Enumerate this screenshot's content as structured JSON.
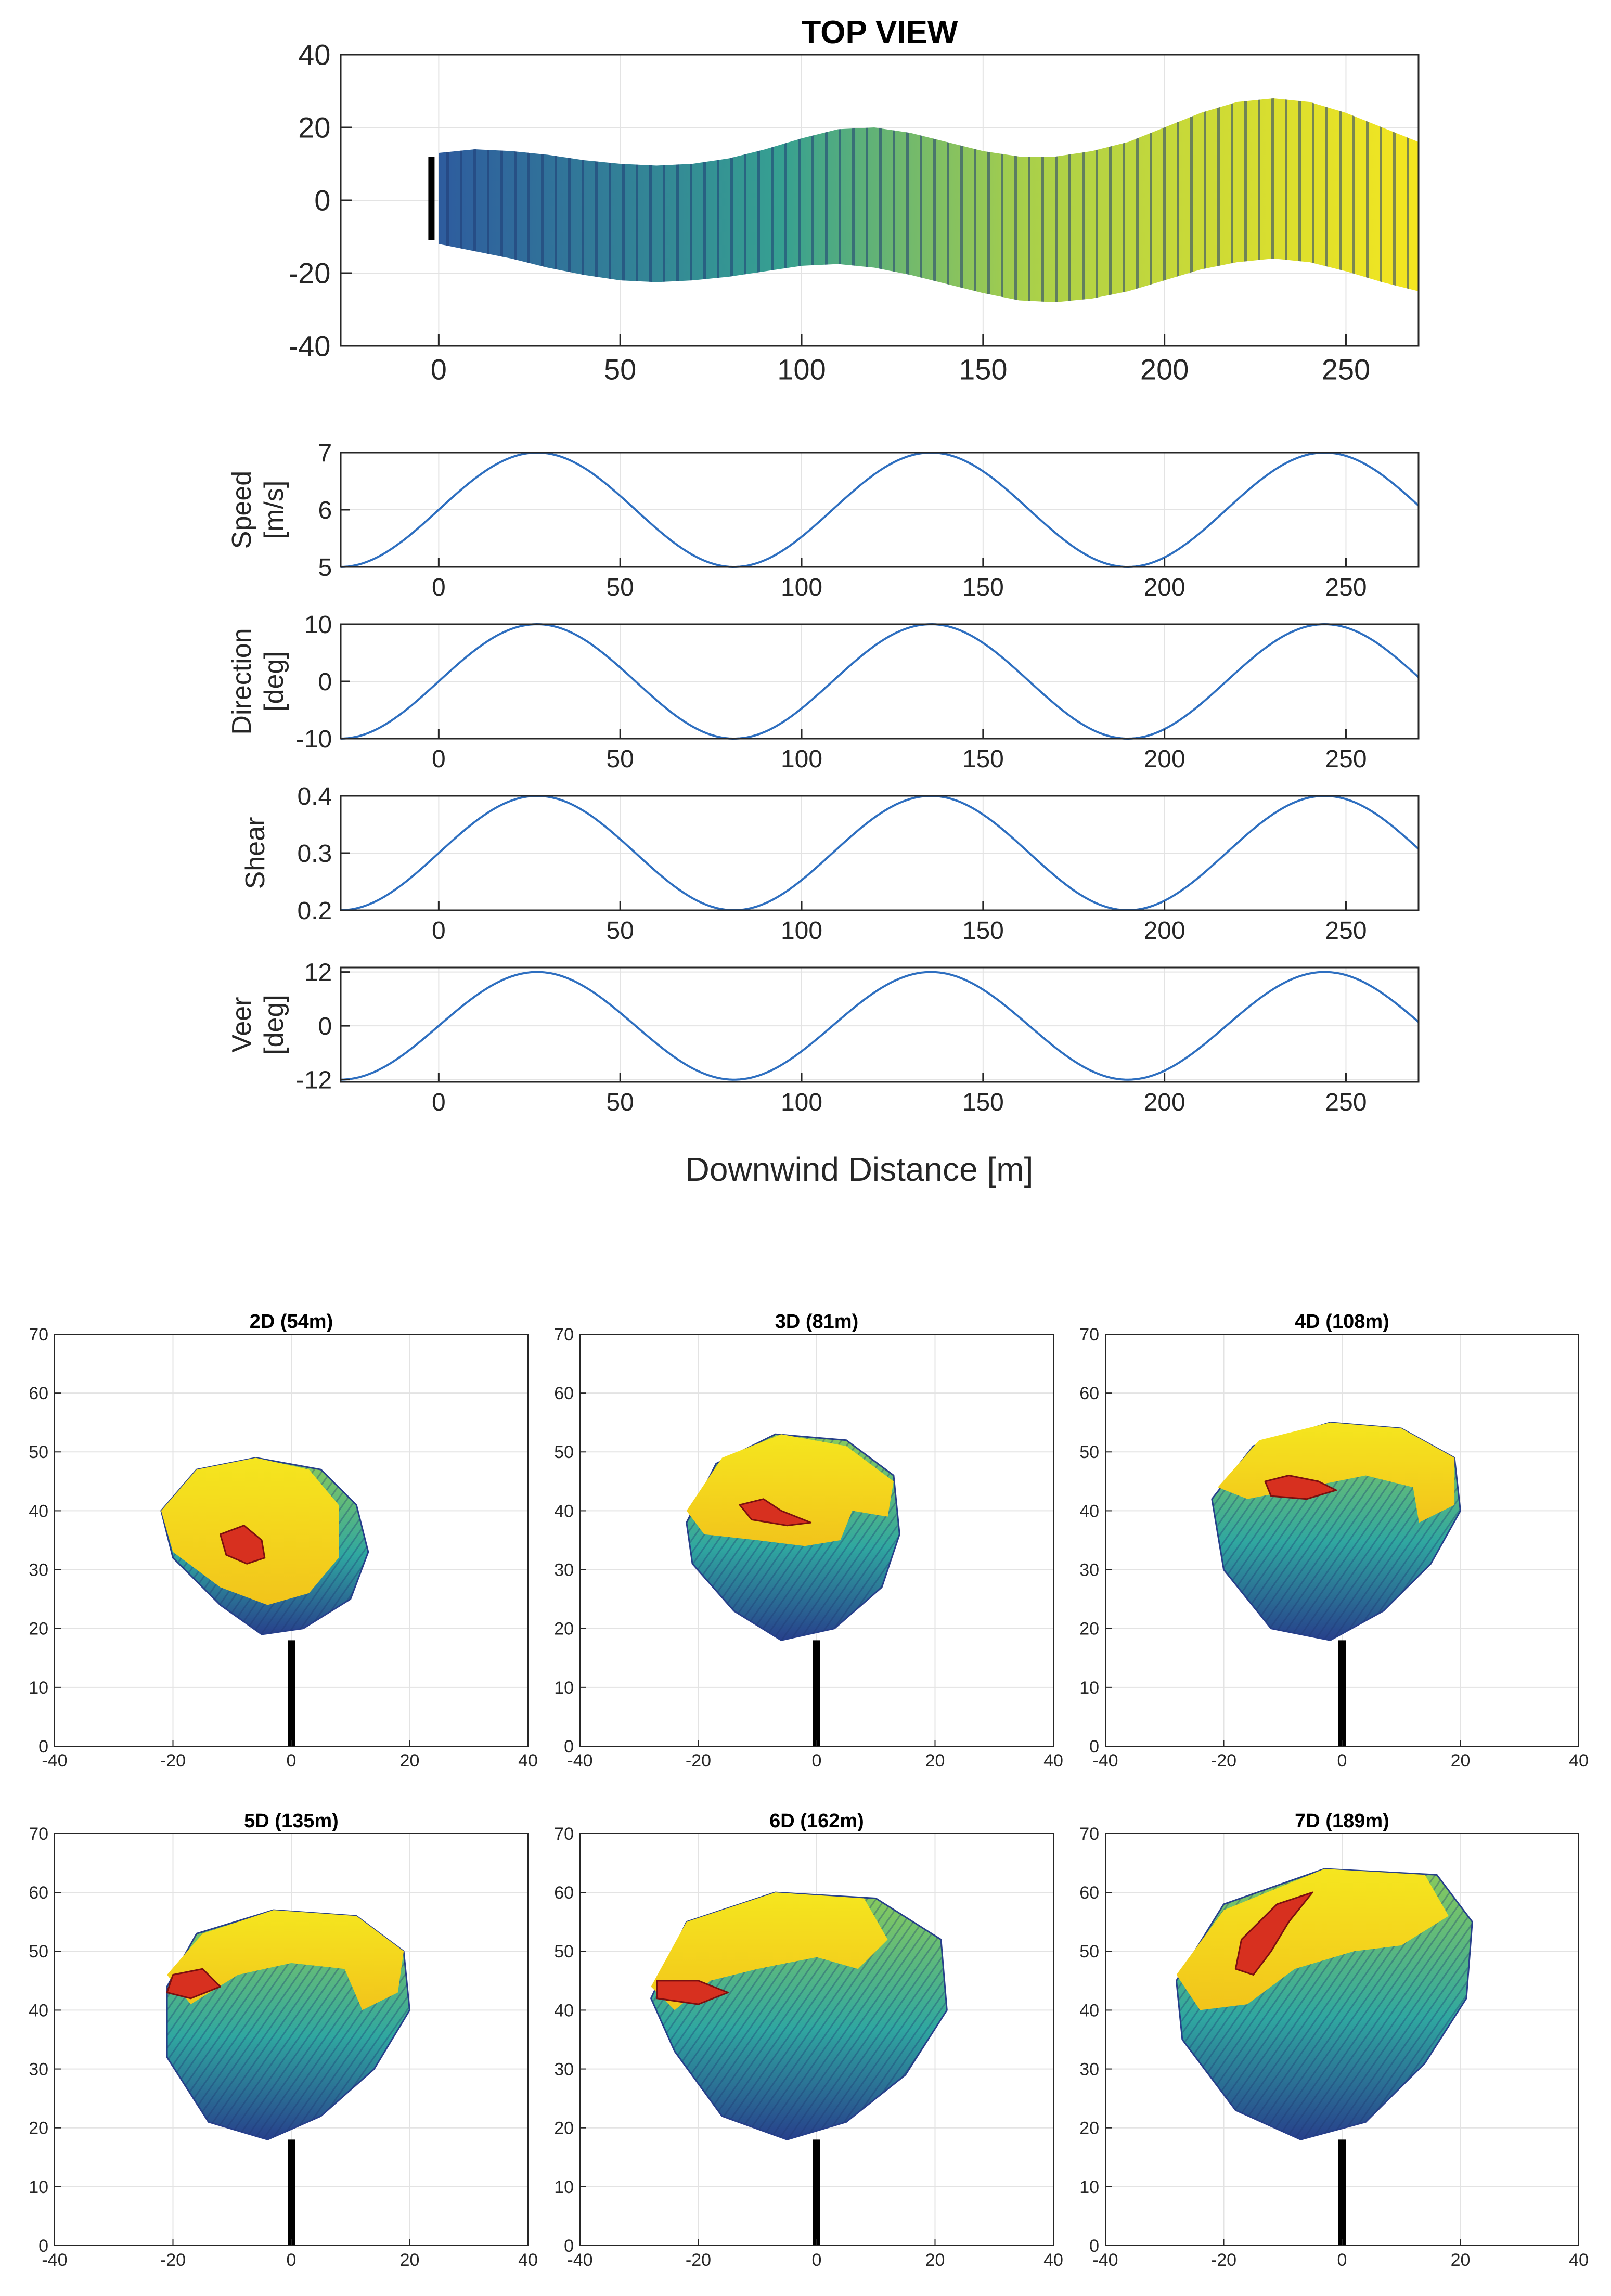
{
  "colors": {
    "line": "#2E6FC0",
    "grid": "#E3E3E3",
    "axis": "#262626",
    "wake_low": "#27408B",
    "wake_mid": "#2FA7A0",
    "wake_high": "#F5E61F",
    "core": "#D7301F",
    "tower": "#000000"
  },
  "labels": {
    "downwind_xlabel": "Downwind Distance [m]"
  },
  "chart_data": [
    {
      "id": "top_view",
      "type": "area",
      "title": "TOP VIEW",
      "xlim": [
        -27,
        270
      ],
      "ylim": [
        -40,
        40
      ],
      "xticks": [
        0,
        50,
        100,
        150,
        200,
        250
      ],
      "yticks": [
        -40,
        -20,
        0,
        20,
        40
      ],
      "grid": true,
      "x": [
        0,
        10,
        20,
        30,
        40,
        50,
        60,
        70,
        80,
        90,
        100,
        110,
        120,
        130,
        140,
        150,
        160,
        170,
        180,
        190,
        200,
        210,
        220,
        230,
        240,
        250,
        260,
        270
      ],
      "upper": [
        13,
        14,
        13.5,
        12.5,
        11,
        10,
        9.5,
        10,
        11.5,
        14,
        17,
        19.5,
        20,
        18.5,
        16,
        13.5,
        12,
        12,
        13.5,
        16,
        20,
        24,
        27,
        28,
        27,
        24,
        20,
        16
      ],
      "lower": [
        -12,
        -14,
        -16,
        -18.5,
        -20.5,
        -22,
        -22.5,
        -22,
        -21,
        -19.5,
        -18,
        -17.5,
        -18.5,
        -20.5,
        -23,
        -25.5,
        -27.5,
        -28,
        -27,
        -25,
        -22,
        -19,
        -17,
        -16,
        -17,
        -19.5,
        -22.5,
        -25
      ]
    },
    {
      "id": "speed",
      "type": "line",
      "ylabel": "Speed [m/s]",
      "xlim": [
        -27,
        270
      ],
      "ylim": [
        5,
        7
      ],
      "yticks": [
        5,
        6,
        7
      ],
      "xticks": [
        0,
        50,
        100,
        150,
        200,
        250
      ],
      "grid": true,
      "wave": {
        "min": 5,
        "max": 7,
        "phase_zero_x": 0,
        "peak_x": 27,
        "period": 108.5
      }
    },
    {
      "id": "direction",
      "type": "line",
      "ylabel": "Direction [deg]",
      "xlim": [
        -27,
        270
      ],
      "ylim": [
        -10,
        10
      ],
      "yticks": [
        -10,
        0,
        10
      ],
      "xticks": [
        0,
        50,
        100,
        150,
        200,
        250
      ],
      "grid": true,
      "wave": {
        "min": -10,
        "max": 10,
        "phase_zero_x": 0,
        "peak_x": 27,
        "period": 108.5
      }
    },
    {
      "id": "shear",
      "type": "line",
      "ylabel": "Shear",
      "xlim": [
        -27,
        270
      ],
      "ylim": [
        0.2,
        0.4
      ],
      "yticks": [
        0.2,
        0.3,
        0.4
      ],
      "xticks": [
        0,
        50,
        100,
        150,
        200,
        250
      ],
      "grid": true,
      "wave": {
        "min": 0.2,
        "max": 0.4,
        "phase_zero_x": 0,
        "peak_x": 27,
        "period": 108.5
      }
    },
    {
      "id": "veer",
      "type": "line",
      "ylabel": "Veer [deg]",
      "xlim": [
        -27,
        270
      ],
      "ylim": [
        -12.5,
        13
      ],
      "yticks": [
        -12,
        0,
        12
      ],
      "xticks": [
        0,
        50,
        100,
        150,
        200,
        250
      ],
      "grid": true,
      "wave": {
        "min": -12,
        "max": 12,
        "phase_zero_x": 0,
        "peak_x": 27,
        "period": 108.5
      }
    },
    {
      "id": "cross_sections",
      "type": "heatmap",
      "xlim": [
        -40,
        40
      ],
      "ylim": [
        0,
        70
      ],
      "xticks": [
        -40,
        -20,
        0,
        20,
        40
      ],
      "yticks": [
        0,
        10,
        20,
        30,
        40,
        50,
        60,
        70
      ],
      "grid": true,
      "tower_top": 18,
      "panels": [
        {
          "title": "2D (54m)",
          "wake": [
            [
              -22,
              40
            ],
            [
              -16,
              47
            ],
            [
              -6,
              49
            ],
            [
              5,
              47
            ],
            [
              11,
              41
            ],
            [
              13,
              33
            ],
            [
              10,
              25
            ],
            [
              2,
              20
            ],
            [
              -5,
              19
            ],
            [
              -12,
              24
            ],
            [
              -20,
              32
            ]
          ],
          "yellow": [
            [
              -22,
              40
            ],
            [
              -16,
              47
            ],
            [
              -6,
              49
            ],
            [
              3,
              47
            ],
            [
              8,
              41
            ],
            [
              8,
              32
            ],
            [
              3,
              26
            ],
            [
              -4,
              24
            ],
            [
              -12,
              27
            ],
            [
              -20,
              33
            ]
          ],
          "core": [
            [
              -12,
              36
            ],
            [
              -8,
              37.5
            ],
            [
              -5,
              35
            ],
            [
              -4.5,
              32
            ],
            [
              -7.5,
              31
            ],
            [
              -11,
              32.5
            ]
          ]
        },
        {
          "title": "3D (81m)",
          "wake": [
            [
              -22,
              38
            ],
            [
              -17,
              48
            ],
            [
              -7,
              53
            ],
            [
              5,
              52
            ],
            [
              13,
              46
            ],
            [
              14,
              36
            ],
            [
              11,
              27
            ],
            [
              3,
              20
            ],
            [
              -6,
              18
            ],
            [
              -14,
              23
            ],
            [
              -21,
              31
            ]
          ],
          "yellow": [
            [
              -22,
              40
            ],
            [
              -16,
              49
            ],
            [
              -6,
              53
            ],
            [
              5,
              51
            ],
            [
              13,
              45
            ],
            [
              12,
              39
            ],
            [
              6,
              40
            ],
            [
              4,
              35
            ],
            [
              -2,
              34
            ],
            [
              -10,
              35
            ],
            [
              -19,
              36
            ]
          ],
          "core": [
            [
              -13,
              41
            ],
            [
              -9,
              42
            ],
            [
              -6,
              40
            ],
            [
              -1,
              38
            ],
            [
              -5,
              37.5
            ],
            [
              -11,
              38.5
            ]
          ]
        },
        {
          "title": "4D (108m)",
          "wake": [
            [
              -22,
              42
            ],
            [
              -15,
              51
            ],
            [
              -2,
              55
            ],
            [
              10,
              54
            ],
            [
              19,
              49
            ],
            [
              20,
              40
            ],
            [
              15,
              31
            ],
            [
              7,
              23
            ],
            [
              -2,
              18
            ],
            [
              -12,
              20
            ],
            [
              -20,
              30
            ]
          ],
          "yellow": [
            [
              -21,
              44
            ],
            [
              -14,
              52
            ],
            [
              -2,
              55
            ],
            [
              10,
              54
            ],
            [
              19,
              49
            ],
            [
              19,
              41
            ],
            [
              13,
              38
            ],
            [
              12,
              44
            ],
            [
              4,
              46
            ],
            [
              -6,
              44
            ],
            [
              -16,
              42
            ]
          ],
          "core": [
            [
              -13,
              45
            ],
            [
              -9,
              46
            ],
            [
              -4,
              45
            ],
            [
              -1,
              43.5
            ],
            [
              -6,
              42
            ],
            [
              -12,
              42.5
            ]
          ]
        },
        {
          "title": "5D (135m)",
          "wake": [
            [
              -21,
              44
            ],
            [
              -16,
              53
            ],
            [
              -3,
              57
            ],
            [
              11,
              56
            ],
            [
              19,
              50
            ],
            [
              20,
              40
            ],
            [
              14,
              30
            ],
            [
              5,
              22
            ],
            [
              -4,
              18
            ],
            [
              -14,
              21
            ],
            [
              -21,
              32
            ]
          ],
          "yellow": [
            [
              -21,
              46
            ],
            [
              -15,
              53
            ],
            [
              -3,
              57
            ],
            [
              11,
              56
            ],
            [
              19,
              50
            ],
            [
              18,
              43
            ],
            [
              12,
              40
            ],
            [
              9,
              47
            ],
            [
              0,
              48
            ],
            [
              -9,
              46
            ],
            [
              -17,
              41
            ]
          ],
          "core": [
            [
              -20,
              46
            ],
            [
              -15,
              47
            ],
            [
              -12,
              44
            ],
            [
              -17,
              42
            ],
            [
              -21,
              43
            ]
          ]
        },
        {
          "title": "6D (162m)",
          "wake": [
            [
              -28,
              42
            ],
            [
              -22,
              55
            ],
            [
              -7,
              60
            ],
            [
              10,
              59
            ],
            [
              21,
              52
            ],
            [
              22,
              40
            ],
            [
              15,
              29
            ],
            [
              5,
              21
            ],
            [
              -5,
              18
            ],
            [
              -16,
              22
            ],
            [
              -24,
              33
            ]
          ],
          "yellow": [
            [
              -28,
              44
            ],
            [
              -22,
              55
            ],
            [
              -7,
              60
            ],
            [
              8,
              59
            ],
            [
              12,
              52
            ],
            [
              7,
              47
            ],
            [
              0,
              49
            ],
            [
              -10,
              47
            ],
            [
              -18,
              45
            ],
            [
              -24,
              40
            ]
          ],
          "core": [
            [
              -27,
              45
            ],
            [
              -20,
              45
            ],
            [
              -15,
              43
            ],
            [
              -20,
              41
            ],
            [
              -27,
              42
            ]
          ]
        },
        {
          "title": "7D (189m)",
          "wake": [
            [
              -28,
              45
            ],
            [
              -20,
              58
            ],
            [
              -3,
              64
            ],
            [
              16,
              63
            ],
            [
              22,
              55
            ],
            [
              21,
              42
            ],
            [
              14,
              31
            ],
            [
              4,
              21
            ],
            [
              -7,
              18
            ],
            [
              -18,
              23
            ],
            [
              -27,
              35
            ]
          ],
          "yellow": [
            [
              -28,
              46
            ],
            [
              -20,
              57
            ],
            [
              -3,
              64
            ],
            [
              14,
              63
            ],
            [
              18,
              56
            ],
            [
              10,
              51
            ],
            [
              2,
              50
            ],
            [
              -8,
              47
            ],
            [
              -16,
              41
            ],
            [
              -24,
              40
            ]
          ],
          "core": [
            [
              -17,
              52
            ],
            [
              -11,
              58
            ],
            [
              -5,
              60
            ],
            [
              -9,
              55
            ],
            [
              -12,
              50
            ],
            [
              -15,
              46
            ],
            [
              -18,
              47
            ]
          ]
        }
      ]
    }
  ]
}
